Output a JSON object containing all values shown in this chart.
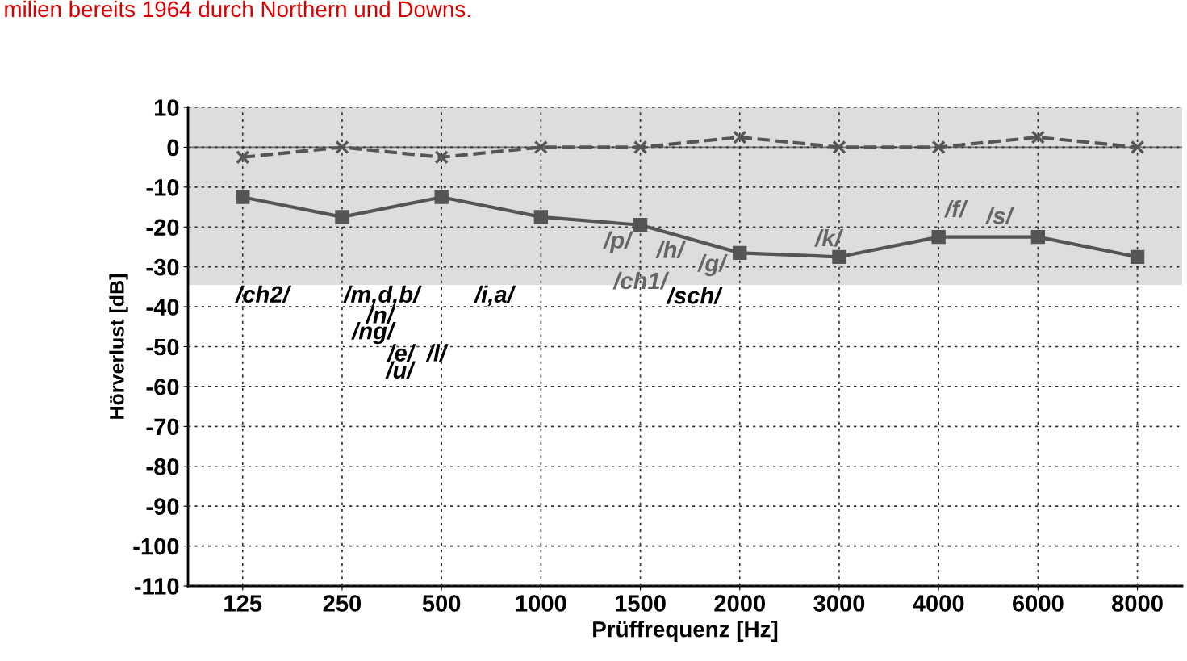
{
  "chart_data": {
    "type": "line",
    "title": "milien bereits 1964 durch Northern und Downs.",
    "xlabel": "Prüffrequenz [Hz]",
    "ylabel": "Hörverlust [dB]",
    "categories": [
      "125",
      "250",
      "500",
      "1000",
      "1500",
      "2000",
      "3000",
      "4000",
      "6000",
      "8000"
    ],
    "series": [
      {
        "color": "#555555",
        "marker": "square",
        "line_style": "solid",
        "values": [
          -12.5,
          -17.5,
          -12.5,
          -17.5,
          -19.5,
          -26.5,
          -27.5,
          -22.5,
          -22.5,
          -27.5
        ]
      },
      {
        "color": "#555555",
        "marker": "cross",
        "line_style": "dashed",
        "values": [
          -2.5,
          0,
          -2.5,
          0,
          0,
          2.5,
          0,
          0,
          2.5,
          0
        ]
      }
    ],
    "ylim": [
      -110,
      10
    ],
    "yticks": [
      -110,
      -100,
      -90,
      -80,
      -70,
      -60,
      -50,
      -40,
      -30,
      -20,
      -10,
      0,
      10
    ],
    "grid": true,
    "legend": false,
    "bands": [
      {
        "axis": "y",
        "from": -34.5,
        "to": 10,
        "color": "#dddddd"
      }
    ],
    "ref_lines": [
      {
        "axis": "y",
        "value": 0,
        "color": "#777777",
        "line_style": "solid"
      }
    ],
    "annotations": [
      "/p/",
      "/h/",
      "/g/",
      "/ch1/",
      "/k/",
      "/f/",
      "/s/",
      "/ch2/",
      "/m,d,b/",
      "/i,a/",
      "/sch/",
      "/n/",
      "/ng/",
      "/e/",
      "/l/",
      "/u/"
    ]
  }
}
